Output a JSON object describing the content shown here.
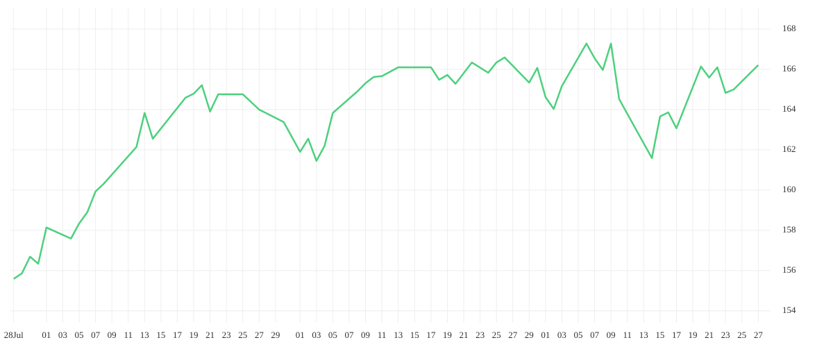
{
  "chart_data": {
    "type": "line",
    "x": [
      0,
      1,
      2,
      3,
      4,
      7,
      8,
      9,
      10,
      11,
      15,
      16,
      17,
      21,
      22,
      23,
      24,
      25,
      28,
      30,
      33,
      35,
      36,
      37,
      38,
      39,
      42,
      43,
      44,
      45,
      47,
      51,
      52,
      53,
      54,
      56,
      58,
      59,
      60,
      63,
      64,
      65,
      66,
      67,
      70,
      71,
      72,
      73,
      74,
      78,
      79,
      80,
      81,
      84,
      85,
      86,
      87,
      88,
      91
    ],
    "series": [
      {
        "color": "#4cd07d",
        "values": [
          155.59,
          155.86,
          156.69,
          156.34,
          158.14,
          157.59,
          158.34,
          158.9,
          159.93,
          160.31,
          162.14,
          163.83,
          162.55,
          164.59,
          164.79,
          165.21,
          163.9,
          164.76,
          164.76,
          164.0,
          163.38,
          161.9,
          162.55,
          161.45,
          162.2,
          163.83,
          164.9,
          165.31,
          165.62,
          165.66,
          166.1,
          166.1,
          165.48,
          165.72,
          165.28,
          166.34,
          165.83,
          166.34,
          166.59,
          165.34,
          166.07,
          164.62,
          164.03,
          165.17,
          167.28,
          166.55,
          165.97,
          167.28,
          164.52,
          161.59,
          163.66,
          163.86,
          163.07,
          166.14,
          165.59,
          166.1,
          164.83,
          165.0,
          166.21
        ]
      }
    ],
    "xlim": [
      -0.4,
      92.5
    ],
    "xticks": [
      {
        "value": 0,
        "label": "28Jul"
      },
      {
        "value": 4,
        "label": "01"
      },
      {
        "value": 6,
        "label": "03"
      },
      {
        "value": 8,
        "label": "05"
      },
      {
        "value": 10,
        "label": "07"
      },
      {
        "value": 12,
        "label": "09"
      },
      {
        "value": 14,
        "label": "11"
      },
      {
        "value": 16,
        "label": "13"
      },
      {
        "value": 18,
        "label": "15"
      },
      {
        "value": 20,
        "label": "17"
      },
      {
        "value": 22,
        "label": "19"
      },
      {
        "value": 24,
        "label": "21"
      },
      {
        "value": 26,
        "label": "23"
      },
      {
        "value": 28,
        "label": "25"
      },
      {
        "value": 30,
        "label": "27"
      },
      {
        "value": 32,
        "label": "29"
      },
      {
        "value": 35,
        "label": "01"
      },
      {
        "value": 37,
        "label": "03"
      },
      {
        "value": 39,
        "label": "05"
      },
      {
        "value": 41,
        "label": "07"
      },
      {
        "value": 43,
        "label": "09"
      },
      {
        "value": 45,
        "label": "11"
      },
      {
        "value": 47,
        "label": "13"
      },
      {
        "value": 49,
        "label": "15"
      },
      {
        "value": 51,
        "label": "17"
      },
      {
        "value": 53,
        "label": "19"
      },
      {
        "value": 55,
        "label": "21"
      },
      {
        "value": 57,
        "label": "23"
      },
      {
        "value": 59,
        "label": "25"
      },
      {
        "value": 61,
        "label": "27"
      },
      {
        "value": 63,
        "label": "29"
      },
      {
        "value": 65,
        "label": "01"
      },
      {
        "value": 67,
        "label": "03"
      },
      {
        "value": 69,
        "label": "05"
      },
      {
        "value": 71,
        "label": "07"
      },
      {
        "value": 73,
        "label": "09"
      },
      {
        "value": 75,
        "label": "11"
      },
      {
        "value": 77,
        "label": "13"
      },
      {
        "value": 79,
        "label": "15"
      },
      {
        "value": 81,
        "label": "17"
      },
      {
        "value": 83,
        "label": "19"
      },
      {
        "value": 85,
        "label": "21"
      },
      {
        "value": 87,
        "label": "23"
      },
      {
        "value": 89,
        "label": "25"
      },
      {
        "value": 91,
        "label": "27"
      }
    ],
    "ylim": [
      153.41,
      169.03
    ],
    "yticks": [
      154,
      156,
      158,
      160,
      162,
      164,
      166,
      168
    ],
    "grid": true
  }
}
